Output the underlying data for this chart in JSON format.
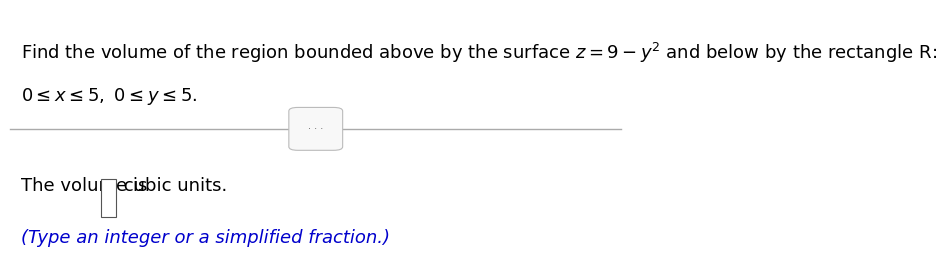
{
  "line1": "Find the volume of the region bounded above by the surface $z = 9 - y^2$ and below by the rectangle R:",
  "line2": "$0 \\leq x \\leq 5,\\ 0 \\leq y \\leq 5.$",
  "line3_prefix": "The volume is ",
  "line3_suffix": " cubic units.",
  "line4": "(Type an integer or a simplified fraction.)",
  "bg_color": "#ffffff",
  "text_color_black": "#000000",
  "text_color_blue": "#0000cc",
  "divider_color": "#aaaaaa",
  "dots_color": "#666666",
  "font_size_main": 13,
  "fig_width": 8.69,
  "fig_height": 2.44
}
